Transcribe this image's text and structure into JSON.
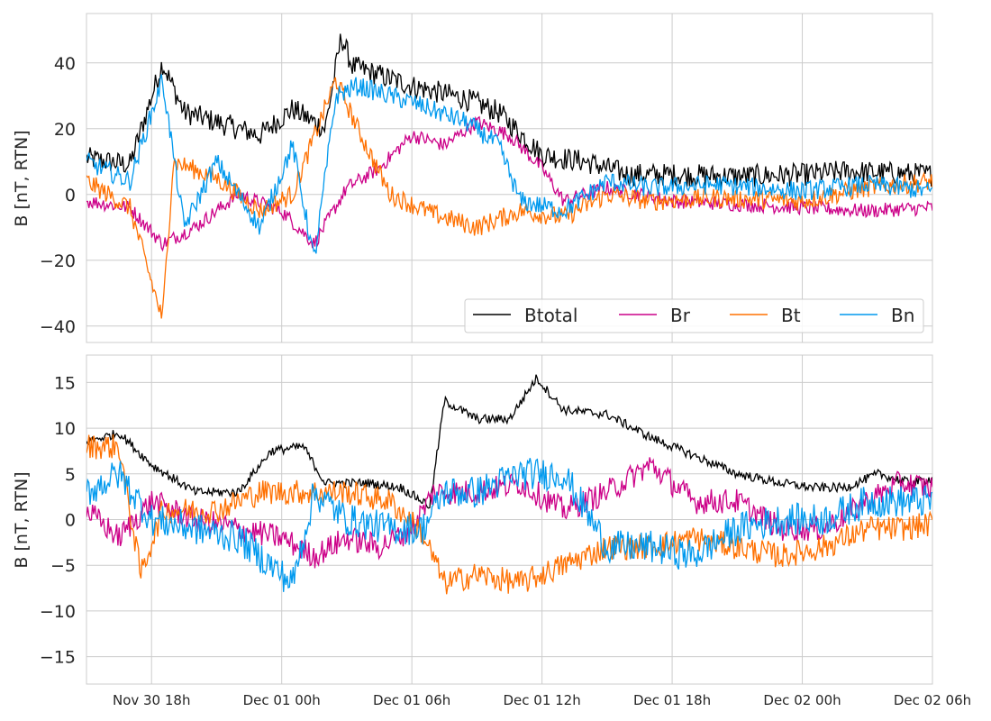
{
  "chart_data": [
    {
      "type": "line",
      "xlabel": "",
      "ylabel": "B [nT, RTN]",
      "ylim": [
        -45,
        55
      ],
      "yticks": [
        40,
        20,
        0,
        -20,
        -40
      ],
      "ytick_labels": [
        "40",
        "20",
        "0",
        "−20",
        "−40"
      ],
      "xlim": [
        "2024-11-30 15:00",
        "2024-12-02 06:00"
      ],
      "grid": true,
      "legend": {
        "placement": "lower-right",
        "columns": 4
      },
      "series": [
        {
          "name": "Btotal",
          "color": "#000000",
          "key": [
            [
              "2024-11-30 15:00",
              11
            ],
            [
              "2024-11-30 17:00",
              9
            ],
            [
              "2024-11-30 18:30",
              40
            ],
            [
              "2024-11-30 19:30",
              25
            ],
            [
              "2024-11-30 21:00",
              22
            ],
            [
              "2024-11-30 23:00",
              18
            ],
            [
              "2024-12-01 00:30",
              26
            ],
            [
              "2024-12-01 02:00",
              20
            ],
            [
              "2024-12-01 02:45",
              48
            ],
            [
              "2024-12-01 03:15",
              39
            ],
            [
              "2024-12-01 06:00",
              33
            ],
            [
              "2024-12-01 08:30",
              29
            ],
            [
              "2024-12-01 10:00",
              25
            ],
            [
              "2024-12-01 12:00",
              12
            ],
            [
              "2024-12-01 14:00",
              10
            ],
            [
              "2024-12-01 16:00",
              6
            ],
            [
              "2024-12-01 18:00",
              6
            ],
            [
              "2024-12-01 21:00",
              5.5
            ],
            [
              "2024-12-02 00:00",
              6
            ],
            [
              "2024-12-02 02:00",
              7
            ],
            [
              "2024-12-02 04:00",
              6.5
            ],
            [
              "2024-12-02 06:00",
              6
            ]
          ]
        },
        {
          "name": "Br",
          "color": "#cc0088",
          "key": [
            [
              "2024-11-30 15:00",
              -2
            ],
            [
              "2024-11-30 17:00",
              -4
            ],
            [
              "2024-11-30 18:30",
              -15
            ],
            [
              "2024-11-30 20:00",
              -10
            ],
            [
              "2024-11-30 22:00",
              0
            ],
            [
              "2024-12-01 00:00",
              -5
            ],
            [
              "2024-12-01 01:30",
              -15
            ],
            [
              "2024-12-01 03:00",
              2
            ],
            [
              "2024-12-01 04:30",
              8
            ],
            [
              "2024-12-01 06:00",
              18
            ],
            [
              "2024-12-01 07:30",
              15
            ],
            [
              "2024-12-01 09:00",
              22
            ],
            [
              "2024-12-01 10:30",
              18
            ],
            [
              "2024-12-01 12:00",
              8
            ],
            [
              "2024-12-01 13:00",
              -2
            ],
            [
              "2024-12-01 15:00",
              2
            ],
            [
              "2024-12-01 18:00",
              -2
            ],
            [
              "2024-12-01 21:00",
              -3
            ],
            [
              "2024-12-02 00:00",
              -4
            ],
            [
              "2024-12-02 03:00",
              -5
            ],
            [
              "2024-12-02 06:00",
              -4
            ]
          ]
        },
        {
          "name": "Bt",
          "color": "#ff7000",
          "key": [
            [
              "2024-11-30 15:00",
              4
            ],
            [
              "2024-11-30 17:00",
              -4
            ],
            [
              "2024-11-30 18:30",
              -38
            ],
            [
              "2024-11-30 19:00",
              10
            ],
            [
              "2024-11-30 21:00",
              5
            ],
            [
              "2024-11-30 23:00",
              -5
            ],
            [
              "2024-12-01 00:30",
              0
            ],
            [
              "2024-12-01 02:30",
              35
            ],
            [
              "2024-12-01 03:30",
              20
            ],
            [
              "2024-12-01 05:00",
              0
            ],
            [
              "2024-12-01 07:00",
              -6
            ],
            [
              "2024-12-01 09:00",
              -10
            ],
            [
              "2024-12-01 11:00",
              -5
            ],
            [
              "2024-12-01 13:00",
              -7
            ],
            [
              "2024-12-01 15:00",
              0
            ],
            [
              "2024-12-01 17:00",
              -2
            ],
            [
              "2024-12-01 20:00",
              -1
            ],
            [
              "2024-12-02 00:00",
              -2
            ],
            [
              "2024-12-02 03:00",
              2
            ],
            [
              "2024-12-02 06:00",
              4
            ]
          ]
        },
        {
          "name": "Bn",
          "color": "#0099ee",
          "key": [
            [
              "2024-11-30 15:00",
              10
            ],
            [
              "2024-11-30 17:00",
              4
            ],
            [
              "2024-11-30 18:30",
              35
            ],
            [
              "2024-11-30 19:30",
              -10
            ],
            [
              "2024-11-30 21:00",
              10
            ],
            [
              "2024-11-30 23:00",
              -10
            ],
            [
              "2024-12-01 00:30",
              15
            ],
            [
              "2024-12-01 01:30",
              -20
            ],
            [
              "2024-12-01 02:30",
              30
            ],
            [
              "2024-12-01 03:30",
              33
            ],
            [
              "2024-12-01 06:00",
              28
            ],
            [
              "2024-12-01 08:30",
              22
            ],
            [
              "2024-12-01 10:00",
              15
            ],
            [
              "2024-12-01 11:00",
              -2
            ],
            [
              "2024-12-01 13:00",
              -5
            ],
            [
              "2024-12-01 15:00",
              4
            ],
            [
              "2024-12-01 17:00",
              2
            ],
            [
              "2024-12-01 20:00",
              3
            ],
            [
              "2024-12-02 00:00",
              1
            ],
            [
              "2024-12-02 03:00",
              3
            ],
            [
              "2024-12-02 06:00",
              1
            ]
          ]
        }
      ]
    },
    {
      "type": "line",
      "xlabel": "",
      "ylabel": "B [nT, RTN]",
      "ylim": [
        -18,
        18
      ],
      "yticks": [
        15,
        10,
        5,
        0,
        -5,
        -10,
        -15
      ],
      "ytick_labels": [
        "15",
        "10",
        "5",
        "0",
        "−5",
        "−10",
        "−15"
      ],
      "xlim": [
        "2024-11-30 15:00",
        "2024-12-02 06:00"
      ],
      "xticks": [
        "2024-11-30 18:00",
        "2024-12-01 00:00",
        "2024-12-01 06:00",
        "2024-12-01 12:00",
        "2024-12-01 18:00",
        "2024-12-02 00:00",
        "2024-12-02 06:00"
      ],
      "xtick_labels": [
        "Nov 30 18h",
        "Dec 01 00h",
        "Dec 01 06h",
        "Dec 01 12h",
        "Dec 01 18h",
        "Dec 02 00h",
        "Dec 02 06h"
      ],
      "grid": true,
      "series": [
        {
          "name": "Btotal",
          "color": "#000000",
          "key": [
            [
              "2024-11-30 15:00",
              8.5
            ],
            [
              "2024-11-30 16:30",
              9.5
            ],
            [
              "2024-11-30 18:00",
              6
            ],
            [
              "2024-11-30 20:00",
              3
            ],
            [
              "2024-11-30 22:00",
              3
            ],
            [
              "2024-11-30 23:30",
              7.5
            ],
            [
              "2024-12-01 01:00",
              8
            ],
            [
              "2024-12-01 02:00",
              4
            ],
            [
              "2024-12-01 04:00",
              4
            ],
            [
              "2024-12-01 05:30",
              3.5
            ],
            [
              "2024-12-01 06:50",
              1.5
            ],
            [
              "2024-12-01 07:30",
              13
            ],
            [
              "2024-12-01 09:00",
              11
            ],
            [
              "2024-12-01 10:30",
              11
            ],
            [
              "2024-12-01 11:45",
              15.5
            ],
            [
              "2024-12-01 13:00",
              12
            ],
            [
              "2024-12-01 15:00",
              11.5
            ],
            [
              "2024-12-01 17:00",
              9
            ],
            [
              "2024-12-01 19:00",
              7
            ],
            [
              "2024-12-01 21:00",
              5
            ],
            [
              "2024-12-01 23:00",
              4
            ],
            [
              "2024-12-02 00:30",
              3.5
            ],
            [
              "2024-12-02 02:00",
              3.5
            ],
            [
              "2024-12-02 03:30",
              5
            ],
            [
              "2024-12-02 05:00",
              4
            ],
            [
              "2024-12-02 06:00",
              4.5
            ]
          ]
        },
        {
          "name": "Br",
          "color": "#cc0088",
          "key": [
            [
              "2024-11-30 15:00",
              1
            ],
            [
              "2024-11-30 16:30",
              -2
            ],
            [
              "2024-11-30 18:00",
              2
            ],
            [
              "2024-11-30 20:00",
              0
            ],
            [
              "2024-11-30 22:00",
              -1
            ],
            [
              "2024-12-01 00:00",
              -2
            ],
            [
              "2024-12-01 01:30",
              -4
            ],
            [
              "2024-12-01 03:00",
              -2
            ],
            [
              "2024-12-01 04:30",
              -3
            ],
            [
              "2024-12-01 06:00",
              -1
            ],
            [
              "2024-12-01 07:00",
              3
            ],
            [
              "2024-12-01 09:00",
              3
            ],
            [
              "2024-12-01 11:00",
              4
            ],
            [
              "2024-12-01 13:00",
              1
            ],
            [
              "2024-12-01 15:00",
              3
            ],
            [
              "2024-12-01 17:00",
              6
            ],
            [
              "2024-12-01 19:00",
              2
            ],
            [
              "2024-12-01 21:00",
              2
            ],
            [
              "2024-12-01 23:00",
              -1
            ],
            [
              "2024-12-02 01:00",
              -1
            ],
            [
              "2024-12-02 03:00",
              2
            ],
            [
              "2024-12-02 04:30",
              4
            ],
            [
              "2024-12-02 06:00",
              3.5
            ]
          ]
        },
        {
          "name": "Bt",
          "color": "#ff7000",
          "key": [
            [
              "2024-11-30 15:00",
              8
            ],
            [
              "2024-11-30 16:30",
              8
            ],
            [
              "2024-11-30 17:30",
              -6
            ],
            [
              "2024-11-30 18:30",
              1
            ],
            [
              "2024-11-30 21:00",
              1
            ],
            [
              "2024-11-30 23:00",
              3
            ],
            [
              "2024-12-01 01:00",
              3
            ],
            [
              "2024-12-01 03:00",
              3
            ],
            [
              "2024-12-01 05:00",
              2
            ],
            [
              "2024-12-01 06:30",
              -1.5
            ],
            [
              "2024-12-01 07:30",
              -7
            ],
            [
              "2024-12-01 09:00",
              -6
            ],
            [
              "2024-12-01 11:00",
              -7
            ],
            [
              "2024-12-01 13:00",
              -5
            ],
            [
              "2024-12-01 15:00",
              -3
            ],
            [
              "2024-12-01 17:00",
              -3
            ],
            [
              "2024-12-01 19:00",
              -2
            ],
            [
              "2024-12-01 21:00",
              -3
            ],
            [
              "2024-12-01 23:00",
              -4
            ],
            [
              "2024-12-02 01:00",
              -3
            ],
            [
              "2024-12-02 03:00",
              -1
            ],
            [
              "2024-12-02 04:30",
              -1
            ],
            [
              "2024-12-02 06:00",
              -0.5
            ]
          ]
        },
        {
          "name": "Bn",
          "color": "#0099ee",
          "key": [
            [
              "2024-11-30 15:00",
              3
            ],
            [
              "2024-11-30 16:30",
              5
            ],
            [
              "2024-11-30 18:00",
              0
            ],
            [
              "2024-11-30 20:00",
              -1
            ],
            [
              "2024-11-30 22:00",
              -2
            ],
            [
              "2024-11-30 23:30",
              -5
            ],
            [
              "2024-12-01 00:30",
              -7
            ],
            [
              "2024-12-01 01:30",
              3
            ],
            [
              "2024-12-01 03:00",
              0
            ],
            [
              "2024-12-01 05:00",
              -1
            ],
            [
              "2024-12-01 06:30",
              -1
            ],
            [
              "2024-12-01 07:30",
              3
            ],
            [
              "2024-12-01 09:00",
              3
            ],
            [
              "2024-12-01 11:00",
              5
            ],
            [
              "2024-12-01 13:00",
              5
            ],
            [
              "2024-12-01 15:00",
              -3
            ],
            [
              "2024-12-01 17:00",
              -3
            ],
            [
              "2024-12-01 19:00",
              -4
            ],
            [
              "2024-12-01 21:00",
              -1
            ],
            [
              "2024-12-01 23:00",
              0
            ],
            [
              "2024-12-02 01:00",
              0
            ],
            [
              "2024-12-02 03:00",
              2
            ],
            [
              "2024-12-02 04:30",
              2
            ],
            [
              "2024-12-02 06:00",
              2
            ]
          ]
        }
      ]
    }
  ]
}
